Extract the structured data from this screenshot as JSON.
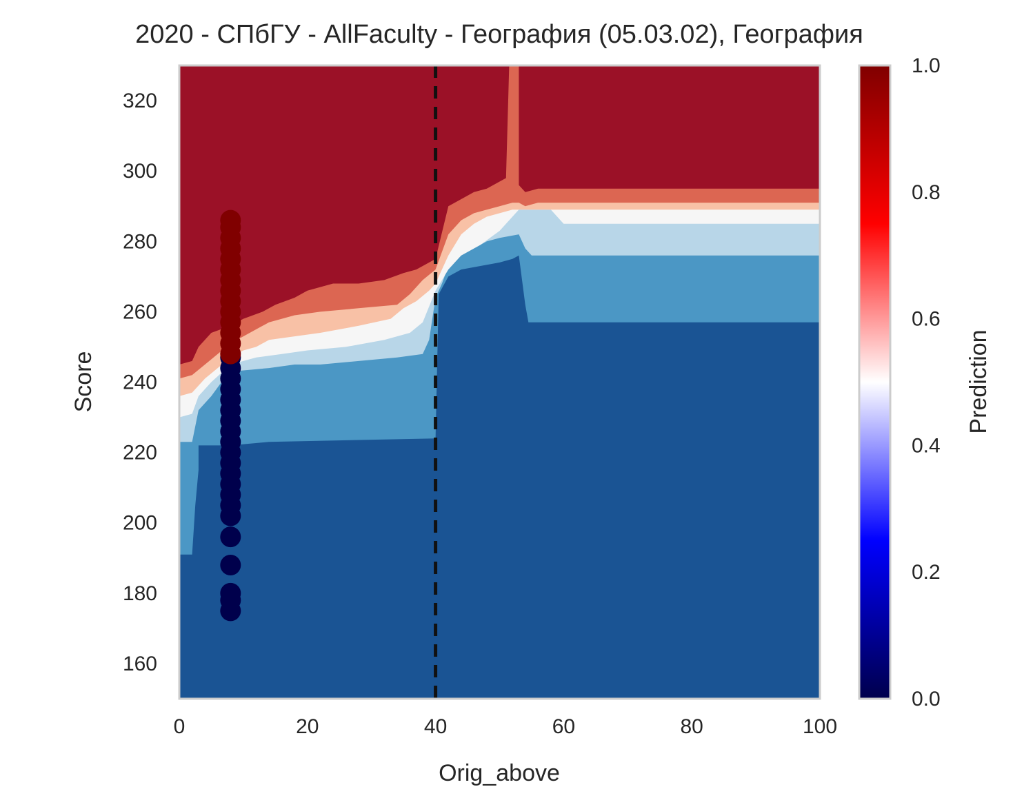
{
  "chart_data": {
    "type": "contour",
    "title": "2020 - СПбГУ - AllFaculty - География (05.03.02), География",
    "xlabel": "Orig_above",
    "ylabel": "Score",
    "xlim": [
      0,
      100
    ],
    "ylim": [
      150,
      330
    ],
    "xticks": [
      0,
      20,
      40,
      60,
      80,
      100
    ],
    "xtick_labels": [
      "0",
      "20",
      "40",
      "60",
      "80",
      "100"
    ],
    "yticks": [
      160,
      180,
      200,
      220,
      240,
      260,
      280,
      300,
      320
    ],
    "ytick_labels": [
      "160",
      "180",
      "200",
      "220",
      "240",
      "260",
      "280",
      "300",
      "320"
    ],
    "grid": false,
    "vline": {
      "x": 40,
      "style": "dashed",
      "color": "#111111"
    },
    "contour_fill_colors": [
      "#1a5494",
      "#4b97c5",
      "#b8d6e8",
      "#f6f6f6",
      "#f8c1a6",
      "#dc6652",
      "#9b1127"
    ],
    "contour_boundaries": [
      {
        "points": [
          [
            0,
            191
          ],
          [
            2,
            191
          ],
          [
            2.5,
            205
          ],
          [
            3,
            215
          ],
          [
            3,
            222
          ],
          [
            8,
            222
          ],
          [
            14,
            223
          ],
          [
            40,
            224
          ],
          [
            40.5,
            265
          ],
          [
            42,
            270
          ],
          [
            44,
            272
          ],
          [
            47,
            273
          ],
          [
            50,
            274
          ],
          [
            52,
            275
          ],
          [
            53,
            276
          ],
          [
            54,
            262
          ],
          [
            54.5,
            257
          ],
          [
            60,
            257
          ],
          [
            100,
            257
          ]
        ]
      },
      {
        "points": [
          [
            0,
            223
          ],
          [
            2,
            223
          ],
          [
            3,
            232
          ],
          [
            5,
            236
          ],
          [
            7,
            241
          ],
          [
            8,
            243
          ],
          [
            14,
            244
          ],
          [
            18,
            245
          ],
          [
            22,
            245
          ],
          [
            28,
            246
          ],
          [
            34,
            247
          ],
          [
            38,
            248
          ],
          [
            39,
            252
          ],
          [
            40,
            264
          ],
          [
            41,
            268
          ],
          [
            42,
            273
          ],
          [
            44,
            276
          ],
          [
            46,
            278
          ],
          [
            48,
            280
          ],
          [
            50,
            281
          ],
          [
            53,
            282
          ],
          [
            54,
            278
          ],
          [
            55,
            276
          ],
          [
            60,
            276
          ],
          [
            100,
            276
          ]
        ]
      },
      {
        "points": [
          [
            0,
            230
          ],
          [
            2,
            231
          ],
          [
            3,
            236
          ],
          [
            5,
            240
          ],
          [
            8,
            245
          ],
          [
            12,
            247
          ],
          [
            16,
            248
          ],
          [
            20,
            249
          ],
          [
            26,
            250
          ],
          [
            32,
            252
          ],
          [
            36,
            254
          ],
          [
            38,
            257
          ],
          [
            40,
            266
          ],
          [
            42,
            272
          ],
          [
            44,
            276
          ],
          [
            47,
            279
          ],
          [
            50,
            283
          ],
          [
            53,
            289
          ],
          [
            55,
            289
          ],
          [
            58,
            289
          ],
          [
            60,
            285
          ],
          [
            100,
            285
          ]
        ]
      },
      {
        "points": [
          [
            0,
            236
          ],
          [
            2,
            237
          ],
          [
            4,
            241
          ],
          [
            6,
            244
          ],
          [
            8,
            247
          ],
          [
            10,
            249
          ],
          [
            12,
            250
          ],
          [
            14,
            252
          ],
          [
            18,
            253
          ],
          [
            22,
            254
          ],
          [
            28,
            256
          ],
          [
            33,
            258
          ],
          [
            35,
            261
          ],
          [
            37,
            263
          ],
          [
            39,
            266
          ],
          [
            40,
            268
          ],
          [
            42,
            276
          ],
          [
            44,
            282
          ],
          [
            46,
            285
          ],
          [
            48,
            287
          ],
          [
            50,
            288
          ],
          [
            52,
            289
          ],
          [
            54,
            289
          ],
          [
            56,
            289
          ],
          [
            60,
            289
          ],
          [
            100,
            289
          ]
        ]
      },
      {
        "points": [
          [
            0,
            241
          ],
          [
            2,
            242
          ],
          [
            4,
            245
          ],
          [
            6,
            248
          ],
          [
            8,
            251
          ],
          [
            10,
            253
          ],
          [
            12,
            255
          ],
          [
            14,
            257
          ],
          [
            18,
            259
          ],
          [
            22,
            260
          ],
          [
            28,
            261
          ],
          [
            34,
            262
          ],
          [
            36,
            265
          ],
          [
            38,
            269
          ],
          [
            40,
            272
          ],
          [
            42,
            282
          ],
          [
            44,
            286
          ],
          [
            46,
            288
          ],
          [
            48,
            289
          ],
          [
            50,
            290
          ],
          [
            52,
            291
          ],
          [
            53,
            291
          ],
          [
            54,
            290
          ],
          [
            56,
            291
          ],
          [
            60,
            291
          ],
          [
            80,
            291
          ],
          [
            100,
            291
          ]
        ]
      },
      {
        "points": [
          [
            0,
            245
          ],
          [
            2,
            246
          ],
          [
            3,
            250
          ],
          [
            5,
            254
          ],
          [
            8,
            256
          ],
          [
            10,
            258
          ],
          [
            13,
            260
          ],
          [
            15,
            262
          ],
          [
            18,
            264
          ],
          [
            20,
            266
          ],
          [
            24,
            268
          ],
          [
            28,
            268
          ],
          [
            32,
            269
          ],
          [
            35,
            271
          ],
          [
            37,
            272
          ],
          [
            40,
            275
          ],
          [
            42,
            290
          ],
          [
            44,
            292
          ],
          [
            46,
            294
          ],
          [
            48,
            295
          ],
          [
            50,
            297
          ],
          [
            51,
            298
          ],
          [
            51.5,
            330
          ],
          [
            53,
            330
          ],
          [
            53,
            296
          ],
          [
            54,
            294
          ],
          [
            56,
            295
          ],
          [
            60,
            295
          ],
          [
            80,
            295
          ],
          [
            100,
            295
          ]
        ]
      }
    ],
    "scatter": {
      "x": 8,
      "y_above_threshold": [
        248,
        251,
        254,
        257,
        260,
        263,
        266,
        269,
        272,
        275,
        278,
        281,
        284,
        286
      ],
      "y_below_threshold": [
        175,
        178,
        180,
        188,
        196,
        202,
        205,
        208,
        211,
        214,
        217,
        220,
        223,
        226,
        229,
        232,
        235,
        238,
        241,
        244,
        247
      ],
      "color_above": "#800000",
      "color_below": "#00004c"
    },
    "colorbar": {
      "label": "Prediction",
      "range": [
        0,
        1
      ],
      "ticks": [
        0,
        0.2,
        0.4,
        0.6,
        0.8,
        1.0
      ],
      "tick_labels": [
        "0.0",
        "0.2",
        "0.4",
        "0.6",
        "0.8",
        "1.0"
      ],
      "colormap": "seismic"
    }
  }
}
